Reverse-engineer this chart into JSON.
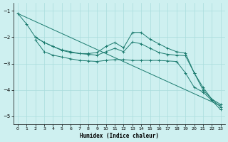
{
  "xlabel": "Humidex (Indice chaleur)",
  "background_color": "#cef0f0",
  "grid_color": "#aadddd",
  "line_color": "#1a7a6e",
  "xlim": [
    -0.5,
    23.5
  ],
  "ylim": [
    -5.3,
    -0.7
  ],
  "yticks": [
    -5,
    -4,
    -3,
    -2,
    -1
  ],
  "xtick_labels": [
    "0",
    "1",
    "2",
    "3",
    "4",
    "5",
    "6",
    "7",
    "8",
    "9",
    "10",
    "11",
    "12",
    "13",
    "14",
    "15",
    "16",
    "17",
    "18",
    "19",
    "20",
    "21",
    "22",
    "23"
  ],
  "xticks": [
    0,
    1,
    2,
    3,
    4,
    5,
    6,
    7,
    8,
    9,
    10,
    11,
    12,
    13,
    14,
    15,
    16,
    17,
    18,
    19,
    20,
    21,
    22,
    23
  ],
  "series": [
    {
      "x": [
        0,
        23
      ],
      "y": [
        -1.1,
        -4.6
      ],
      "has_markers": false
    },
    {
      "x": [
        0,
        1,
        2,
        3,
        4,
        5,
        6,
        7,
        8,
        9,
        10,
        11,
        12,
        13,
        14,
        15,
        16,
        17,
        18,
        19,
        20,
        21,
        22,
        23
      ],
      "y": [
        -1.1,
        -1.5,
        -2.0,
        -2.2,
        -2.35,
        -2.48,
        -2.55,
        -2.62,
        -2.62,
        -2.58,
        -2.35,
        -2.2,
        -2.4,
        -1.82,
        -1.82,
        -2.08,
        -2.25,
        -2.42,
        -2.55,
        -2.6,
        -3.35,
        -4.0,
        -4.35,
        -4.55
      ],
      "has_markers": true
    },
    {
      "x": [
        2,
        3,
        4,
        5,
        6,
        7,
        8,
        9,
        10,
        11,
        12,
        13,
        14,
        15,
        16,
        17,
        18,
        19,
        20,
        21,
        22,
        23
      ],
      "y": [
        -2.0,
        -2.2,
        -2.35,
        -2.5,
        -2.58,
        -2.62,
        -2.65,
        -2.68,
        -2.55,
        -2.42,
        -2.55,
        -2.18,
        -2.25,
        -2.42,
        -2.58,
        -2.65,
        -2.68,
        -2.7,
        -3.35,
        -3.9,
        -4.35,
        -4.65
      ],
      "has_markers": true
    },
    {
      "x": [
        2,
        3,
        4,
        5,
        6,
        7,
        8,
        9,
        10,
        11,
        12,
        13,
        14,
        15,
        16,
        17,
        18,
        19,
        20,
        21,
        22,
        23
      ],
      "y": [
        -2.1,
        -2.55,
        -2.68,
        -2.75,
        -2.82,
        -2.88,
        -2.9,
        -2.92,
        -2.88,
        -2.85,
        -2.85,
        -2.88,
        -2.88,
        -2.88,
        -2.88,
        -2.9,
        -2.92,
        -3.35,
        -3.9,
        -4.08,
        -4.4,
        -4.75
      ],
      "has_markers": true
    }
  ]
}
